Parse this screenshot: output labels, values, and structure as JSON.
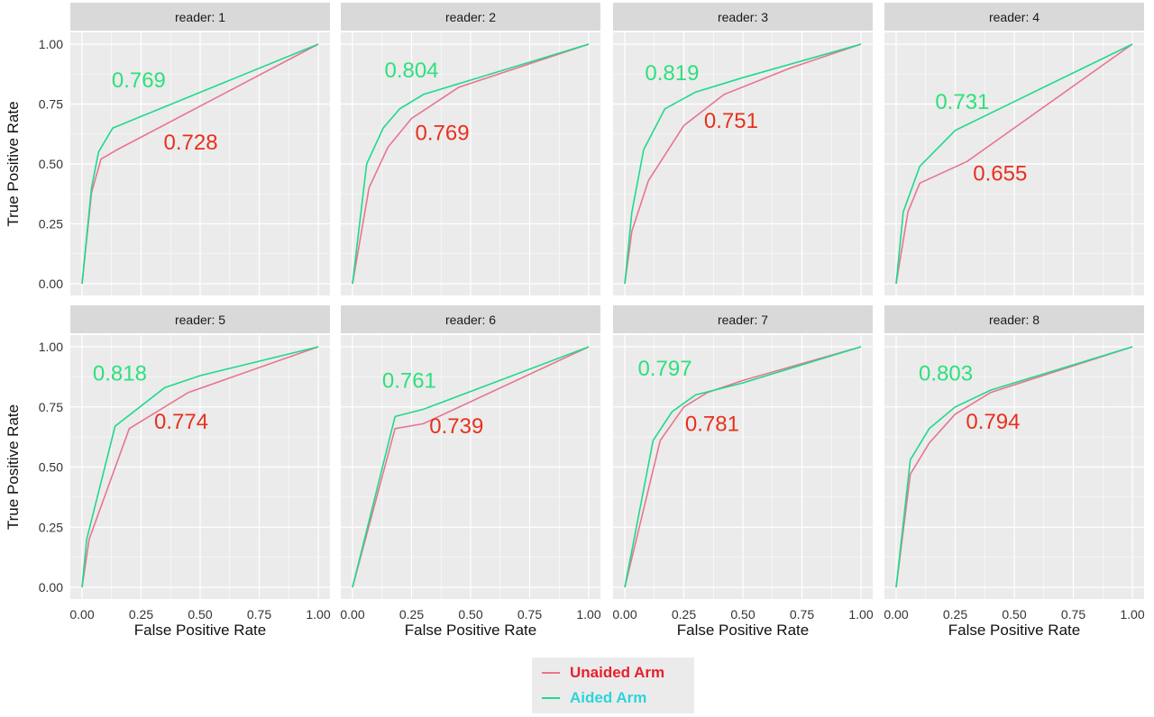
{
  "chart_data": {
    "type": "line",
    "layout": "facet grid, 2 rows x 4 columns",
    "xlabel": "False Positive Rate",
    "ylabel": "True Positive Rate",
    "xlim": [
      0,
      1
    ],
    "ylim": [
      0,
      1
    ],
    "x_ticks": [
      "0.00",
      "0.25",
      "0.50",
      "0.75",
      "1.00"
    ],
    "y_ticks": [
      "0.00",
      "0.25",
      "0.50",
      "0.75",
      "1.00"
    ],
    "grid": true,
    "panel_background": "#ebebeb",
    "strip_background": "#d9d9d9",
    "legend_position": "bottom",
    "legend": [
      {
        "key": "unaided",
        "label": "Unaided Arm",
        "line_color": "#e8758f",
        "label_color": "#e8202f"
      },
      {
        "key": "aided",
        "label": "Aided Arm",
        "line_color": "#1fd98c",
        "label_color": "#2dd4d8"
      }
    ],
    "panels": [
      {
        "strip": "reader: 1",
        "aided": {
          "auc": "0.769",
          "x": [
            0,
            0.04,
            0.07,
            0.13,
            1
          ],
          "y": [
            0,
            0.4,
            0.55,
            0.65,
            1
          ]
        },
        "unaided": {
          "auc": "0.728",
          "x": [
            0,
            0.04,
            0.08,
            0.15,
            1
          ],
          "y": [
            0,
            0.38,
            0.52,
            0.56,
            1
          ]
        },
        "aided_label_at": [
          0.24,
          0.82
        ],
        "unaided_label_at": [
          0.46,
          0.56
        ]
      },
      {
        "strip": "reader: 2",
        "aided": {
          "auc": "0.804",
          "x": [
            0,
            0.06,
            0.13,
            0.2,
            0.3,
            0.4,
            1
          ],
          "y": [
            0,
            0.5,
            0.65,
            0.73,
            0.79,
            0.82,
            1
          ]
        },
        "unaided": {
          "auc": "0.769",
          "x": [
            0,
            0.07,
            0.15,
            0.25,
            0.45,
            1
          ],
          "y": [
            0,
            0.4,
            0.57,
            0.69,
            0.82,
            1
          ]
        },
        "aided_label_at": [
          0.25,
          0.86
        ],
        "unaided_label_at": [
          0.38,
          0.6
        ]
      },
      {
        "strip": "reader: 3",
        "aided": {
          "auc": "0.819",
          "x": [
            0,
            0.03,
            0.08,
            0.17,
            0.3,
            0.5,
            1
          ],
          "y": [
            0,
            0.3,
            0.56,
            0.73,
            0.8,
            0.86,
            1
          ]
        },
        "unaided": {
          "auc": "0.751",
          "x": [
            0,
            0.03,
            0.1,
            0.25,
            0.42,
            0.7,
            1
          ],
          "y": [
            0,
            0.22,
            0.43,
            0.66,
            0.79,
            0.9,
            1
          ]
        },
        "aided_label_at": [
          0.2,
          0.85
        ],
        "unaided_label_at": [
          0.45,
          0.65
        ]
      },
      {
        "strip": "reader: 4",
        "aided": {
          "auc": "0.731",
          "x": [
            0,
            0.03,
            0.1,
            0.25,
            0.5,
            1
          ],
          "y": [
            0,
            0.3,
            0.49,
            0.64,
            0.76,
            1
          ]
        },
        "unaided": {
          "auc": "0.655",
          "x": [
            0,
            0.05,
            0.1,
            0.3,
            1
          ],
          "y": [
            0,
            0.3,
            0.42,
            0.51,
            1
          ]
        },
        "aided_label_at": [
          0.28,
          0.73
        ],
        "unaided_label_at": [
          0.44,
          0.43
        ]
      },
      {
        "strip": "reader: 5",
        "aided": {
          "auc": "0.818",
          "x": [
            0,
            0.02,
            0.14,
            0.35,
            0.5,
            1
          ],
          "y": [
            0,
            0.2,
            0.67,
            0.83,
            0.88,
            1
          ]
        },
        "unaided": {
          "auc": "0.774",
          "x": [
            0,
            0.03,
            0.2,
            0.45,
            1
          ],
          "y": [
            0,
            0.2,
            0.66,
            0.81,
            1
          ]
        },
        "aided_label_at": [
          0.16,
          0.86
        ],
        "unaided_label_at": [
          0.42,
          0.66
        ]
      },
      {
        "strip": "reader: 6",
        "aided": {
          "auc": "0.761",
          "x": [
            0,
            0.18,
            0.3,
            1
          ],
          "y": [
            0,
            0.71,
            0.74,
            1
          ]
        },
        "unaided": {
          "auc": "0.739",
          "x": [
            0,
            0.18,
            0.3,
            1
          ],
          "y": [
            0,
            0.66,
            0.68,
            1
          ]
        },
        "aided_label_at": [
          0.24,
          0.83
        ],
        "unaided_label_at": [
          0.44,
          0.64
        ]
      },
      {
        "strip": "reader: 7",
        "aided": {
          "auc": "0.797",
          "x": [
            0,
            0.12,
            0.2,
            0.3,
            0.5,
            1
          ],
          "y": [
            0,
            0.61,
            0.73,
            0.8,
            0.85,
            1
          ]
        },
        "unaided": {
          "auc": "0.781",
          "x": [
            0,
            0.15,
            0.25,
            0.35,
            0.5,
            1
          ],
          "y": [
            0,
            0.61,
            0.75,
            0.81,
            0.86,
            1
          ]
        },
        "aided_label_at": [
          0.17,
          0.88
        ],
        "unaided_label_at": [
          0.37,
          0.65
        ]
      },
      {
        "strip": "reader: 8",
        "aided": {
          "auc": "0.803",
          "x": [
            0,
            0.06,
            0.14,
            0.25,
            0.4,
            1
          ],
          "y": [
            0,
            0.53,
            0.66,
            0.75,
            0.82,
            1
          ]
        },
        "unaided": {
          "auc": "0.794",
          "x": [
            0,
            0.06,
            0.14,
            0.25,
            0.4,
            1
          ],
          "y": [
            0,
            0.47,
            0.6,
            0.72,
            0.81,
            1
          ]
        },
        "aided_label_at": [
          0.21,
          0.86
        ],
        "unaided_label_at": [
          0.41,
          0.66
        ]
      }
    ]
  }
}
